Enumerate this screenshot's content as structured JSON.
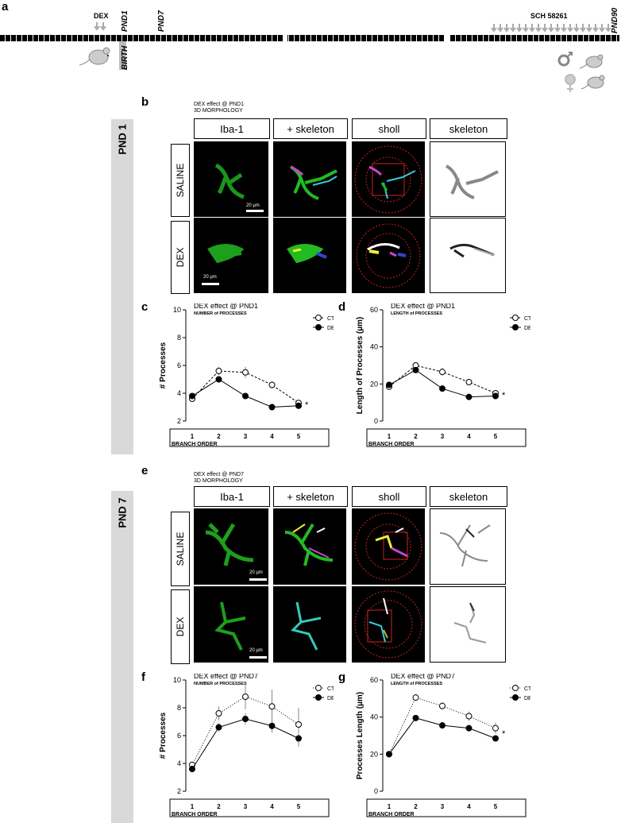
{
  "panel_a": {
    "letter": "a",
    "dex_label": "DEX",
    "pnd1": "PND1",
    "pnd7": "PND7",
    "birth": "BIRTH",
    "sch_label": "SCH 58261",
    "pnd90": "PND90"
  },
  "panel_b": {
    "letter": "b",
    "title_line1": "DEX effect @ PND1",
    "title_line2": "3D MORPHOLOGY",
    "side_label": "PND 1",
    "headers": [
      "Iba-1",
      "+ skeleton",
      "sholl",
      "skeleton"
    ],
    "rows": [
      "SALINE",
      "DEX"
    ],
    "scale": "20 µm"
  },
  "panel_e": {
    "letter": "e",
    "title_line1": "DEX effect @ PND7",
    "title_line2": "3D MORPHOLOGY",
    "side_label": "PND 7",
    "headers": [
      "Iba-1",
      "+ skeleton",
      "sholl",
      "skeleton"
    ],
    "rows": [
      "SALINE",
      "DEX"
    ],
    "scale": "20 µm"
  },
  "colors": {
    "ctr": "#ffffff",
    "dex": "#000000",
    "microglia": "#22cc22",
    "sholl_ring": "#cc2222"
  },
  "chart_data": [
    {
      "panel": "c",
      "type": "line",
      "title": "DEX effect @ PND1",
      "subtitle": "NUMBER of PROCESSES",
      "ylabel": "# Processes",
      "xlabel": "BRANCH  ORDER",
      "x": [
        1,
        2,
        3,
        4,
        5
      ],
      "ylim": [
        2,
        10
      ],
      "yticks": [
        2,
        4,
        6,
        8,
        10
      ],
      "series": [
        {
          "name": "CTR",
          "values": [
            3.6,
            5.6,
            5.5,
            4.6,
            3.3
          ],
          "err": [
            0.15,
            0.3,
            0.4,
            0.25,
            0.15
          ],
          "style": "open-dashed"
        },
        {
          "name": "DEX",
          "values": [
            3.8,
            5.0,
            3.8,
            3.0,
            3.1
          ],
          "err": [
            0.1,
            0.15,
            0.1,
            0.1,
            0.1
          ],
          "style": "filled-solid"
        }
      ],
      "annotation": "*"
    },
    {
      "panel": "d",
      "type": "line",
      "title": "DEX effect @ PND1",
      "subtitle": "LENGTH of PROCESSES",
      "ylabel": "Length of Processes (µm)",
      "xlabel": "BRANCH  ORDER",
      "x": [
        1,
        2,
        3,
        4,
        5
      ],
      "ylim": [
        0,
        60
      ],
      "yticks": [
        0,
        20,
        40,
        60
      ],
      "series": [
        {
          "name": "CTR",
          "values": [
            18.5,
            30,
            26.5,
            21,
            15
          ],
          "err": [
            1,
            1.5,
            2,
            1.5,
            1
          ],
          "style": "open-dashed"
        },
        {
          "name": "DEX",
          "values": [
            19.5,
            27.5,
            17.5,
            13,
            13.5
          ],
          "err": [
            0.8,
            1,
            0.8,
            0.6,
            0.8
          ],
          "style": "filled-solid"
        }
      ],
      "annotation": "*"
    },
    {
      "panel": "f",
      "type": "line",
      "title": "DEX effect @ PND7",
      "subtitle": "NUMBER of PROCESSES",
      "ylabel": "# Processes",
      "xlabel": "BRANCH  ORDER",
      "x": [
        1,
        2,
        3,
        4,
        5
      ],
      "ylim": [
        2,
        10
      ],
      "yticks": [
        2,
        4,
        6,
        8,
        10
      ],
      "series": [
        {
          "name": "CTR",
          "values": [
            3.9,
            7.6,
            8.8,
            8.1,
            6.8
          ],
          "err": [
            0.2,
            0.5,
            0.9,
            1.2,
            1.2
          ],
          "style": "open-dotted"
        },
        {
          "name": "DEX",
          "values": [
            3.6,
            6.6,
            7.2,
            6.7,
            5.8
          ],
          "err": [
            0.15,
            0.3,
            0.4,
            0.5,
            0.6
          ],
          "style": "filled-solid"
        }
      ],
      "annotation": ""
    },
    {
      "panel": "g",
      "type": "line",
      "title": "DEX effect @ PND7",
      "subtitle": "LENGTH of PROCESSES",
      "ylabel": "Processes Length (µm)",
      "xlabel": "BRANCH  ORDER",
      "x": [
        1,
        2,
        3,
        4,
        5
      ],
      "ylim": [
        0,
        60
      ],
      "yticks": [
        0,
        20,
        40,
        60
      ],
      "series": [
        {
          "name": "CTR",
          "values": [
            20,
            50.5,
            46,
            40.5,
            34
          ],
          "err": [
            1,
            1.5,
            2,
            2.5,
            3
          ],
          "style": "open-dotted"
        },
        {
          "name": "DEX",
          "values": [
            20,
            39.5,
            35.5,
            34,
            28.5
          ],
          "err": [
            0.8,
            1,
            1,
            1.5,
            1.5
          ],
          "style": "filled-solid"
        }
      ],
      "annotation": "*"
    }
  ]
}
